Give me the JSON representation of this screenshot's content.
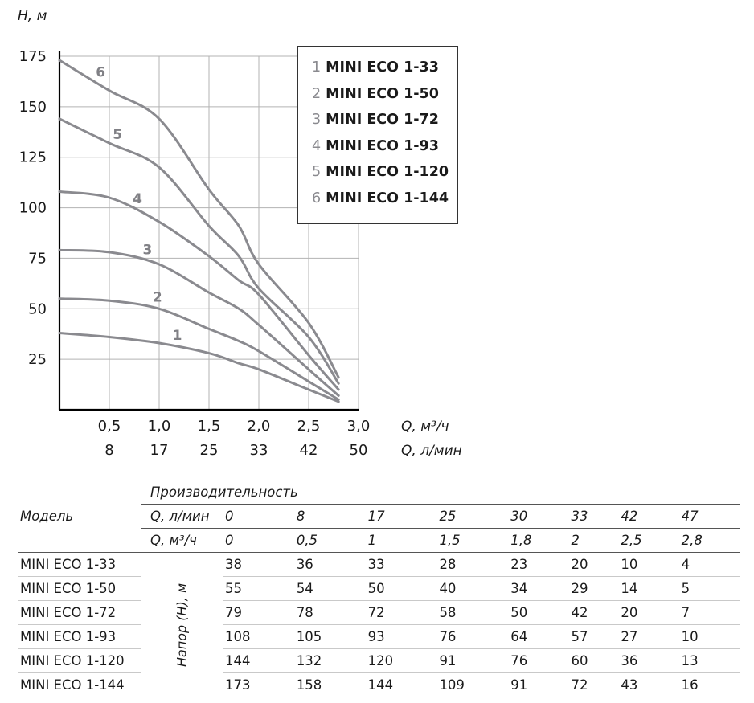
{
  "chart_data": {
    "type": "line",
    "y_axis_label": "H, м",
    "x_axis_label_primary": "Q, м³/ч",
    "x_axis_label_secondary": "Q, л/мин",
    "y_ticks": [
      "175",
      "150",
      "125",
      "100",
      "75",
      "50",
      "25"
    ],
    "x_ticks_primary": [
      "0,5",
      "1,0",
      "1,5",
      "2,0",
      "2,5",
      "3,0"
    ],
    "x_ticks_secondary": [
      "8",
      "17",
      "25",
      "33",
      "42",
      "50"
    ],
    "xlim": [
      0,
      3.0
    ],
    "ylim": [
      0,
      175
    ],
    "grid": true,
    "legend_position": "top-right",
    "series": [
      {
        "id": "1",
        "name": "MINI ECO 1-33",
        "x": [
          0,
          0.5,
          1,
          1.5,
          1.8,
          2,
          2.5,
          2.8
        ],
        "y": [
          38,
          36,
          33,
          28,
          23,
          20,
          10,
          4
        ]
      },
      {
        "id": "2",
        "name": "MINI ECO 1-50",
        "x": [
          0,
          0.5,
          1,
          1.5,
          1.8,
          2,
          2.5,
          2.8
        ],
        "y": [
          55,
          54,
          50,
          40,
          34,
          29,
          14,
          5
        ]
      },
      {
        "id": "3",
        "name": "MINI ECO 1-72",
        "x": [
          0,
          0.5,
          1,
          1.5,
          1.8,
          2,
          2.5,
          2.8
        ],
        "y": [
          79,
          78,
          72,
          58,
          50,
          42,
          20,
          7
        ]
      },
      {
        "id": "4",
        "name": "MINI ECO 1-93",
        "x": [
          0,
          0.5,
          1,
          1.5,
          1.8,
          2,
          2.5,
          2.8
        ],
        "y": [
          108,
          105,
          93,
          76,
          64,
          57,
          27,
          10
        ]
      },
      {
        "id": "5",
        "name": "MINI ECO 1-120",
        "x": [
          0,
          0.5,
          1,
          1.5,
          1.8,
          2,
          2.5,
          2.8
        ],
        "y": [
          144,
          132,
          120,
          91,
          76,
          60,
          36,
          13
        ]
      },
      {
        "id": "6",
        "name": "MINI ECO 1-144",
        "x": [
          0,
          0.5,
          1,
          1.5,
          1.8,
          2,
          2.5,
          2.8
        ],
        "y": [
          173,
          158,
          144,
          109,
          91,
          72,
          43,
          16
        ]
      }
    ]
  },
  "table": {
    "model_header": "Модель",
    "performance_header": "Производительность",
    "q_lmin_label": "Q, л/мин",
    "q_m3h_label": "Q, м³/ч",
    "q_lmin_values": [
      "0",
      "8",
      "17",
      "25",
      "30",
      "33",
      "42",
      "47"
    ],
    "q_m3h_values": [
      "0",
      "0,5",
      "1",
      "1,5",
      "1,8",
      "2",
      "2,5",
      "2,8"
    ],
    "head_label": "Напор (Н), м",
    "rows": [
      {
        "model": "MINI ECO 1-33",
        "values": [
          "38",
          "36",
          "33",
          "28",
          "23",
          "20",
          "10",
          "4"
        ]
      },
      {
        "model": "MINI ECO 1-50",
        "values": [
          "55",
          "54",
          "50",
          "40",
          "34",
          "29",
          "14",
          "5"
        ]
      },
      {
        "model": "MINI ECO 1-72",
        "values": [
          "79",
          "78",
          "72",
          "58",
          "50",
          "42",
          "20",
          "7"
        ]
      },
      {
        "model": "MINI ECO 1-93",
        "values": [
          "108",
          "105",
          "93",
          "76",
          "64",
          "57",
          "27",
          "10"
        ]
      },
      {
        "model": "MINI ECO 1-120",
        "values": [
          "144",
          "132",
          "120",
          "91",
          "76",
          "60",
          "36",
          "13"
        ]
      },
      {
        "model": "MINI ECO 1-144",
        "values": [
          "173",
          "158",
          "144",
          "109",
          "91",
          "72",
          "43",
          "16"
        ]
      }
    ]
  }
}
